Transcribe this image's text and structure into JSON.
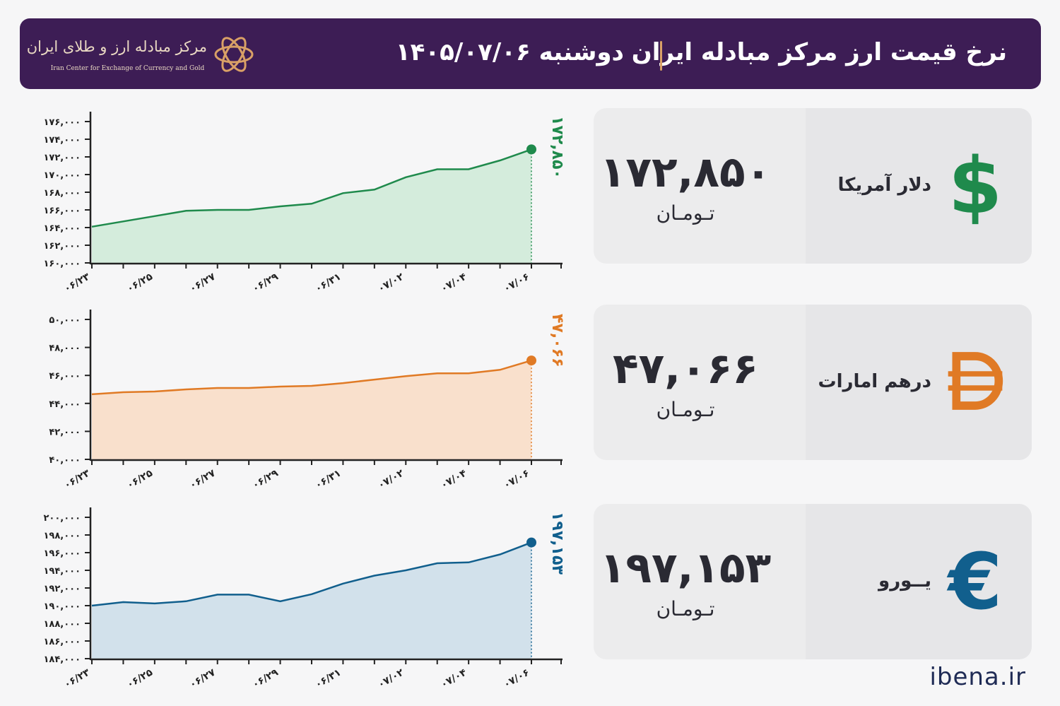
{
  "header": {
    "title": "نرخ قیمت ارز مرکز مبادله ایران",
    "date": "دوشنبه  ۱۴۰۵/۰۷/۰۶",
    "logo_fa": "مرکز مبادله ارز و طلای ایران",
    "logo_en": "Iran Center for Exchange of Currency and Gold"
  },
  "cards": [
    {
      "name": "دلار آمریکا",
      "value": "۱۷۲,۸۵۰",
      "unit": "تـومـان",
      "icon": "dollar-icon",
      "glyph": "$",
      "color": "#1f8a4c"
    },
    {
      "name": "درهم امارات",
      "value": "۴۷,۰۶۶",
      "unit": "تـومـان",
      "icon": "dirham-icon",
      "glyph": "D",
      "color": "#e07a25"
    },
    {
      "name": "یــورو",
      "value": "۱۹۷,۱۵۳",
      "unit": "تـومـان",
      "icon": "euro-icon",
      "glyph": "€",
      "color": "#115f8d"
    }
  ],
  "source": "ibena.ir",
  "chart_data": [
    {
      "type": "area",
      "series_name": "دلار آمریکا",
      "x": [
        "۰۶/۲۳",
        "۰۶/۲۴",
        "۰۶/۲۵",
        "۰۶/۲۶",
        "۰۶/۲۷",
        "۰۶/۲۸",
        "۰۶/۲۹",
        "۰۶/۳۰",
        "۰۶/۳۱",
        "۰۷/۰۱",
        "۰۷/۰۲",
        "۰۷/۰۳",
        "۰۷/۰۴",
        "۰۷/۰۵",
        "۰۷/۰۶"
      ],
      "xticks": [
        "۰۶/۲۳",
        "۰۶/۲۵",
        "۰۶/۲۷",
        "۰۶/۲۹",
        "۰۶/۳۱",
        "۰۷/۰۲",
        "۰۷/۰۴",
        "۰۷/۰۶"
      ],
      "values": [
        164100,
        164700,
        165300,
        165900,
        166000,
        166000,
        166400,
        166700,
        167900,
        168300,
        169700,
        170600,
        170600,
        171600,
        172850
      ],
      "last_label": "۱۷۲,۸۵۰",
      "ylim": [
        160000,
        176000
      ],
      "yticks": [
        160000,
        162000,
        164000,
        166000,
        168000,
        170000,
        172000,
        174000,
        176000
      ],
      "ytick_labels": [
        "۱۶۰,۰۰۰",
        "۱۶۲,۰۰۰",
        "۱۶۴,۰۰۰",
        "۱۶۶,۰۰۰",
        "۱۶۸,۰۰۰",
        "۱۷۰,۰۰۰",
        "۱۷۲,۰۰۰",
        "۱۷۴,۰۰۰",
        "۱۷۶,۰۰۰"
      ],
      "color": "#1f8a4c",
      "fill": "#d4ecdc"
    },
    {
      "type": "area",
      "series_name": "درهم امارات",
      "x": [
        "۰۶/۲۳",
        "۰۶/۲۴",
        "۰۶/۲۵",
        "۰۶/۲۶",
        "۰۶/۲۷",
        "۰۶/۲۸",
        "۰۶/۲۹",
        "۰۶/۳۰",
        "۰۶/۳۱",
        "۰۷/۰۱",
        "۰۷/۰۲",
        "۰۷/۰۳",
        "۰۷/۰۴",
        "۰۷/۰۵",
        "۰۷/۰۶"
      ],
      "xticks": [
        "۰۶/۲۳",
        "۰۶/۲۵",
        "۰۶/۲۷",
        "۰۶/۲۹",
        "۰۶/۳۱",
        "۰۷/۰۲",
        "۰۷/۰۴",
        "۰۷/۰۶"
      ],
      "values": [
        44650,
        44800,
        44850,
        45000,
        45100,
        45100,
        45200,
        45250,
        45450,
        45700,
        45950,
        46150,
        46150,
        46400,
        47066
      ],
      "last_label": "۴۷,۰۶۶",
      "ylim": [
        40000,
        50000
      ],
      "yticks": [
        40000,
        42000,
        44000,
        46000,
        48000,
        50000
      ],
      "ytick_labels": [
        "۴۰,۰۰۰",
        "۴۲,۰۰۰",
        "۴۴,۰۰۰",
        "۴۶,۰۰۰",
        "۴۸,۰۰۰",
        "۵۰,۰۰۰"
      ],
      "color": "#e07a25",
      "fill": "#f9e0cc"
    },
    {
      "type": "area",
      "series_name": "یــورو",
      "x": [
        "۰۶/۲۳",
        "۰۶/۲۴",
        "۰۶/۲۵",
        "۰۶/۲۶",
        "۰۶/۲۷",
        "۰۶/۲۸",
        "۰۶/۲۹",
        "۰۶/۳۰",
        "۰۶/۳۱",
        "۰۷/۰۱",
        "۰۷/۰۲",
        "۰۷/۰۳",
        "۰۷/۰۴",
        "۰۷/۰۵",
        "۰۷/۰۶"
      ],
      "xticks": [
        "۰۶/۲۳",
        "۰۶/۲۵",
        "۰۶/۲۷",
        "۰۶/۲۹",
        "۰۶/۳۱",
        "۰۷/۰۲",
        "۰۷/۰۴",
        "۰۷/۰۶"
      ],
      "values": [
        190000,
        190400,
        190250,
        190500,
        191250,
        191250,
        190500,
        191300,
        192500,
        193400,
        194000,
        194800,
        194900,
        195800,
        197153
      ],
      "last_label": "۱۹۷,۱۵۳",
      "ylim": [
        184000,
        200000
      ],
      "yticks": [
        184000,
        186000,
        188000,
        190000,
        192000,
        194000,
        196000,
        198000,
        200000
      ],
      "ytick_labels": [
        "۱۸۴,۰۰۰",
        "۱۸۶,۰۰۰",
        "۱۸۸,۰۰۰",
        "۱۹۰,۰۰۰",
        "۱۹۲,۰۰۰",
        "۱۹۴,۰۰۰",
        "۱۹۶,۰۰۰",
        "۱۹۸,۰۰۰",
        "۲۰۰,۰۰۰"
      ],
      "color": "#115f8d",
      "fill": "#d2e1eb"
    }
  ]
}
